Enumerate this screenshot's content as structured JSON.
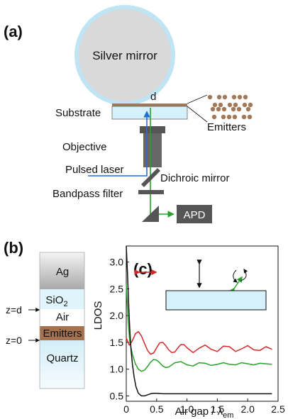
{
  "panel_a": {
    "label": "(a)",
    "silver_mirror": "Silver mirror",
    "d": "d",
    "substrate": "Substrate",
    "emitters": "Emitters",
    "objective": "Objective",
    "pulsed_laser": "Pulsed laser",
    "dichroic_mirror": "Dichroic mirror",
    "bandpass_filter": "Bandpass filter",
    "apd": "APD",
    "colors": {
      "mirror_edge": "#bfe4f4",
      "mirror_fill": "#d8d8d8",
      "substrate": "#d5f1fb",
      "emitter": "#a0785a",
      "laser": "#1f6fd6",
      "signal": "#2aa02a",
      "dark": "#555555"
    }
  },
  "panel_b": {
    "label": "(b)",
    "layers": {
      "ag": "Ag",
      "sio2_base": "SiO",
      "sio2_sub": "2",
      "air": "Air",
      "emitters": "Emitters",
      "quartz": "Quartz"
    },
    "z_d": "z=d",
    "z_0": "z=0",
    "colors": {
      "ag": "#bdbdbd",
      "sio2": "#dff4fb",
      "emitters": "#a57250",
      "quartz": "#e2f3fb"
    }
  },
  "chart_data": {
    "type": "line",
    "panel_label": "(c)",
    "ylabel": "LDOS",
    "xlabel_base": "Air gap / λ",
    "xlabel_sub": "em",
    "xlim": [
      0,
      2.5
    ],
    "ylim": [
      0.4,
      3.3
    ],
    "xticks": [
      "0",
      "0.5",
      "1.0",
      "1.5",
      "2.0",
      "2.5"
    ],
    "yticks": [
      "0.5",
      "1.0",
      "1.5",
      "2.0",
      "2.5",
      "3.0"
    ],
    "grid": false,
    "series": [
      {
        "color": "#d62728",
        "orientation": "parallel",
        "x": [
          0,
          0.05,
          0.1,
          0.15,
          0.2,
          0.25,
          0.3,
          0.35,
          0.4,
          0.45,
          0.5,
          0.55,
          0.6,
          0.65,
          0.7,
          0.75,
          0.8,
          0.85,
          0.9,
          0.95,
          1.0,
          1.1,
          1.2,
          1.3,
          1.4,
          1.5,
          1.6,
          1.7,
          1.8,
          1.9,
          2.0,
          2.1,
          2.2,
          2.3,
          2.4
        ],
        "y": [
          1.58,
          1.45,
          1.53,
          1.66,
          1.7,
          1.62,
          1.48,
          1.35,
          1.28,
          1.3,
          1.4,
          1.49,
          1.5,
          1.44,
          1.36,
          1.31,
          1.32,
          1.4,
          1.46,
          1.46,
          1.4,
          1.31,
          1.39,
          1.45,
          1.37,
          1.33,
          1.43,
          1.42,
          1.33,
          1.38,
          1.44,
          1.36,
          1.35,
          1.42,
          1.37
        ]
      },
      {
        "color": "#2ca02c",
        "orientation": "isotropic",
        "x": [
          0,
          0.03,
          0.06,
          0.1,
          0.15,
          0.2,
          0.25,
          0.3,
          0.35,
          0.4,
          0.45,
          0.5,
          0.55,
          0.6,
          0.65,
          0.7,
          0.8,
          0.9,
          1.0,
          1.1,
          1.2,
          1.3,
          1.4,
          1.5,
          1.6,
          1.7,
          1.8,
          1.9,
          2.0,
          2.1,
          2.2,
          2.3,
          2.4
        ],
        "y": [
          2.6,
          1.9,
          1.5,
          1.28,
          1.1,
          1.0,
          0.96,
          0.98,
          1.05,
          1.13,
          1.18,
          1.17,
          1.12,
          1.06,
          1.03,
          1.04,
          1.12,
          1.14,
          1.08,
          1.06,
          1.12,
          1.11,
          1.07,
          1.09,
          1.12,
          1.09,
          1.08,
          1.12,
          1.1,
          1.08,
          1.11,
          1.1,
          1.09
        ]
      },
      {
        "color": "#111111",
        "orientation": "perpendicular",
        "x": [
          0,
          0.02,
          0.04,
          0.06,
          0.08,
          0.1,
          0.13,
          0.16,
          0.2,
          0.25,
          0.3,
          0.35,
          0.4,
          0.45,
          0.5,
          0.6,
          0.7,
          0.8,
          1.0,
          1.5,
          2.0,
          2.4
        ],
        "y": [
          3.3,
          2.8,
          2.2,
          1.7,
          1.35,
          1.1,
          0.85,
          0.67,
          0.55,
          0.5,
          0.5,
          0.52,
          0.54,
          0.55,
          0.55,
          0.54,
          0.54,
          0.54,
          0.54,
          0.54,
          0.54,
          0.54
        ]
      }
    ]
  }
}
